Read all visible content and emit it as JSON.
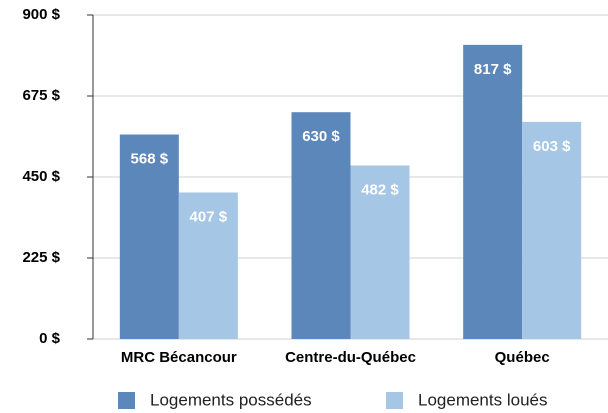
{
  "chart_data": {
    "type": "bar",
    "categories": [
      "MRC Bécancour",
      "Centre-du-Québec",
      "Québec"
    ],
    "series": [
      {
        "name": "Logements possédés",
        "color": "#5b87ba",
        "values": [
          568,
          630,
          817
        ],
        "value_labels": [
          "568 $",
          "630 $",
          "817 $"
        ]
      },
      {
        "name": "Logements loués",
        "color": "#a5c6e4",
        "values": [
          407,
          482,
          603
        ],
        "value_labels": [
          "407 $",
          "482 $",
          "603 $"
        ]
      }
    ],
    "ylim": [
      0,
      900
    ],
    "yticks": [
      {
        "value": 0,
        "label": "0 $"
      },
      {
        "value": 225,
        "label": "225 $"
      },
      {
        "value": 450,
        "label": "450 $"
      },
      {
        "value": 675,
        "label": "675 $"
      },
      {
        "value": 900,
        "label": "900 $"
      }
    ],
    "grid": true,
    "legend": "bottom"
  }
}
